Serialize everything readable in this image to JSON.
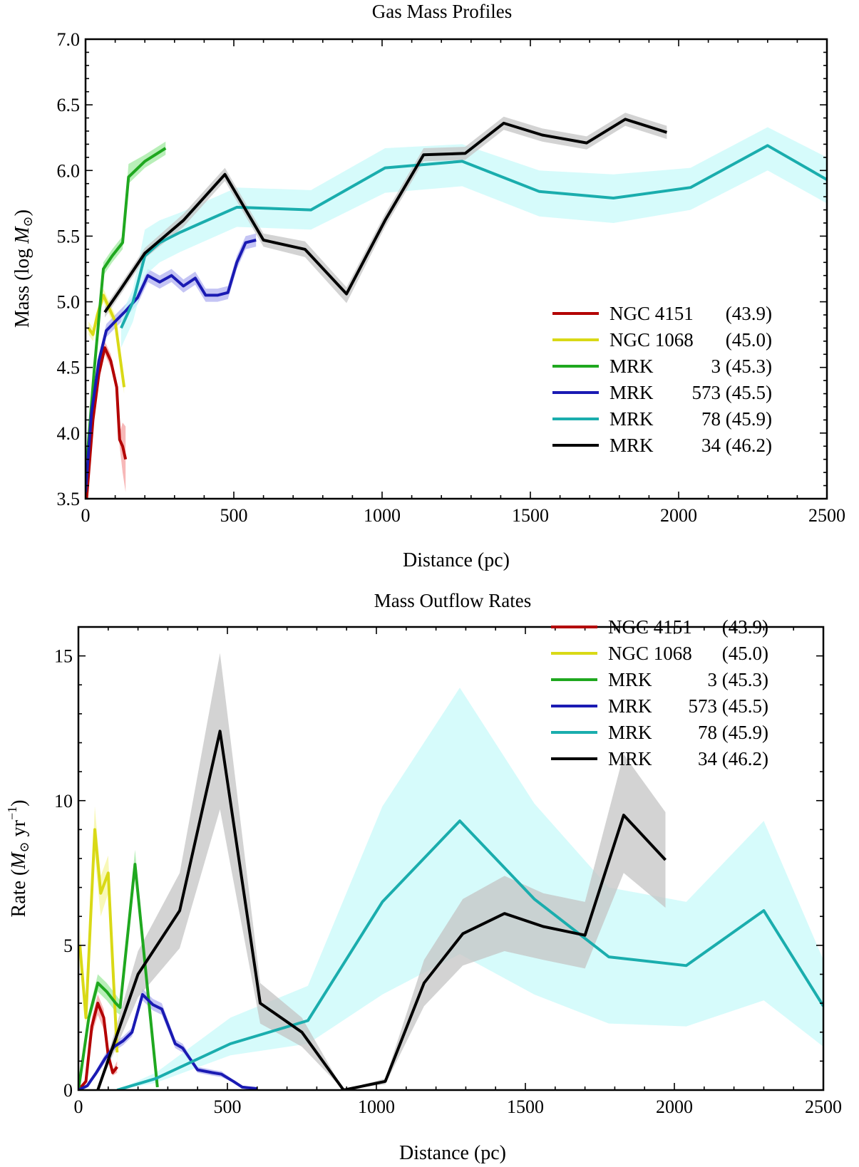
{
  "figure": {
    "charts": [
      {
        "panel": "top",
        "type": "line",
        "title": "Gas Mass Profiles",
        "xlabel": "Distance (pc)",
        "ylabel_main": "Mass  (log ",
        "ylabel_sym": "M",
        "ylabel_sub": "⊙",
        "ylabel_end": ")",
        "xlim": [
          0,
          2500
        ],
        "ylim": [
          3.5,
          7.0
        ],
        "xticks": [
          0,
          500,
          1000,
          1500,
          2000,
          2500
        ],
        "xtick_labels": [
          "0",
          "500",
          "1000",
          "1500",
          "2000",
          "2500"
        ],
        "yticks": [
          3.5,
          4.0,
          4.5,
          5.0,
          5.5,
          6.0,
          6.5,
          7.0
        ],
        "ytick_labels": [
          "3.5",
          "4.0",
          "4.5",
          "5.0",
          "5.5",
          "6.0",
          "6.5",
          "7.0"
        ],
        "legend_position": "lower-right",
        "series": [
          {
            "name": "NGC 4151 (43.9)",
            "label_name": "NGC 4151",
            "label_val": "(43.9)",
            "color": "#b30000",
            "band": "#f4a0a0",
            "x": [
              0,
              25,
              45,
              65,
              85,
              105,
              115,
              125,
              135
            ],
            "y": [
              3.4,
              4.1,
              4.45,
              4.65,
              4.55,
              4.35,
              3.95,
              3.9,
              3.8
            ],
            "lo": [
              3.3,
              4.05,
              4.4,
              4.6,
              4.5,
              4.3,
              3.9,
              3.7,
              3.55
            ],
            "hi": [
              3.5,
              4.15,
              4.5,
              4.7,
              4.6,
              4.4,
              4.0,
              4.08,
              4.05
            ]
          },
          {
            "name": "NGC 1068 (45.0)",
            "label_name": "NGC 1068",
            "label_val": "(45.0)",
            "color": "#d9d916",
            "band": "#f6f6a0",
            "x": [
              10,
              25,
              40,
              60,
              80,
              100,
              115,
              130
            ],
            "y": [
              4.8,
              4.75,
              4.9,
              5.05,
              4.95,
              4.85,
              4.6,
              4.35
            ],
            "lo": [
              4.75,
              4.7,
              4.85,
              5.0,
              4.9,
              4.8,
              4.55,
              4.3
            ],
            "hi": [
              4.85,
              4.8,
              4.95,
              5.1,
              5.0,
              4.9,
              4.65,
              4.4
            ]
          },
          {
            "name": "MRK 3 (45.3)",
            "label_name": "MRK",
            "label_val": "3 (45.3)",
            "color": "#1fa81f",
            "band": "#a0eaa0",
            "x": [
              5,
              30,
              60,
              90,
              125,
              145,
              200,
              270
            ],
            "y": [
              3.8,
              4.5,
              5.25,
              5.35,
              5.45,
              5.95,
              6.07,
              6.17
            ],
            "lo": [
              3.75,
              4.45,
              5.2,
              5.3,
              5.4,
              5.9,
              6.02,
              6.12
            ],
            "hi": [
              3.85,
              4.55,
              5.3,
              5.4,
              5.5,
              6.05,
              6.12,
              6.22
            ]
          },
          {
            "name": "MRK 573 (45.5)",
            "label_name": "MRK",
            "label_val": "573 (45.5)",
            "color": "#1a1ab3",
            "band": "#b0b0f0",
            "x": [
              0,
              20,
              45,
              70,
              100,
              135,
              175,
              210,
              250,
              290,
              330,
              370,
              405,
              445,
              480,
              510,
              540,
              575
            ],
            "y": [
              3.55,
              4.15,
              4.55,
              4.78,
              4.85,
              4.93,
              5.03,
              5.2,
              5.15,
              5.2,
              5.12,
              5.18,
              5.05,
              5.05,
              5.07,
              5.3,
              5.45,
              5.47
            ],
            "lo": [
              3.5,
              4.1,
              4.5,
              4.73,
              4.8,
              4.88,
              4.98,
              5.15,
              5.1,
              5.15,
              5.07,
              5.13,
              5.0,
              5.0,
              5.02,
              5.25,
              5.4,
              5.42
            ],
            "hi": [
              3.6,
              4.2,
              4.6,
              4.83,
              4.9,
              4.98,
              5.08,
              5.25,
              5.2,
              5.25,
              5.17,
              5.23,
              5.1,
              5.1,
              5.12,
              5.35,
              5.5,
              5.52
            ]
          },
          {
            "name": "MRK 78 (45.9)",
            "label_name": "MRK",
            "label_val": "78 (45.9)",
            "color": "#1aadad",
            "band": "#c8fafa",
            "x": [
              120,
              160,
              200,
              250,
              320,
              390,
              510,
              760,
              1010,
              1270,
              1530,
              1780,
              2040,
              2300,
              2500
            ],
            "y": [
              4.8,
              5.0,
              5.35,
              5.45,
              5.53,
              5.6,
              5.72,
              5.7,
              6.02,
              6.07,
              5.84,
              5.79,
              5.87,
              6.19,
              5.93
            ],
            "lo": [
              4.65,
              4.85,
              5.2,
              5.3,
              5.38,
              5.45,
              5.57,
              5.55,
              5.83,
              5.88,
              5.65,
              5.6,
              5.7,
              6.0,
              5.75
            ],
            "hi": [
              4.9,
              5.1,
              5.55,
              5.62,
              5.68,
              5.75,
              5.87,
              5.85,
              6.17,
              6.2,
              6.0,
              5.97,
              6.02,
              6.33,
              6.1
            ]
          },
          {
            "name": "MRK 34 (46.2)",
            "label_name": "MRK",
            "label_val": "34 (46.2)",
            "color": "#000000",
            "band": "#c4c4c4",
            "x": [
              65,
              120,
              200,
              330,
              470,
              600,
              740,
              880,
              1010,
              1140,
              1280,
              1410,
              1540,
              1690,
              1820,
              1960
            ],
            "y": [
              4.92,
              5.1,
              5.37,
              5.62,
              5.97,
              5.47,
              5.4,
              5.06,
              5.62,
              6.12,
              6.13,
              6.36,
              6.27,
              6.21,
              6.39,
              6.29
            ],
            "lo": [
              4.88,
              5.06,
              5.33,
              5.57,
              5.92,
              5.42,
              5.34,
              4.99,
              5.57,
              6.07,
              6.08,
              6.31,
              6.22,
              6.16,
              6.34,
              6.24
            ],
            "hi": [
              4.96,
              5.14,
              5.41,
              5.67,
              6.02,
              5.52,
              5.46,
              5.11,
              5.67,
              6.17,
              6.18,
              6.41,
              6.32,
              6.26,
              6.44,
              6.34
            ]
          }
        ]
      },
      {
        "panel": "bottom",
        "type": "line",
        "title": "Mass Outflow Rates",
        "xlabel": "Distance (pc)",
        "ylabel_main": "Rate (",
        "ylabel_sym": "M",
        "ylabel_sub": "⊙",
        "ylabel_end": " yr",
        "ylabel_sup": "−1",
        "ylabel_close": ")",
        "xlim": [
          0,
          2500
        ],
        "ylim": [
          0,
          16
        ],
        "xticks": [
          0,
          500,
          1000,
          1500,
          2000,
          2500
        ],
        "xtick_labels": [
          "0",
          "500",
          "1000",
          "1500",
          "2000",
          "2500"
        ],
        "yticks": [
          0,
          5,
          10,
          15
        ],
        "ytick_labels": [
          "0",
          "5",
          "10",
          "15"
        ],
        "legend_position": "top-right",
        "series": [
          {
            "name": "NGC 4151 (43.9)",
            "label_name": "NGC 4151",
            "label_val": "(43.9)",
            "color": "#b30000",
            "band": "#f4a0a0",
            "x": [
              0,
              25,
              45,
              65,
              85,
              100,
              115,
              130
            ],
            "y": [
              0,
              0.3,
              2.2,
              3.0,
              2.5,
              1.2,
              0.6,
              0.8
            ],
            "lo": [
              0,
              0.2,
              1.9,
              2.6,
              2.1,
              1.0,
              0.5,
              0.6
            ],
            "hi": [
              0,
              0.4,
              2.5,
              3.3,
              2.8,
              1.4,
              0.7,
              1.0
            ]
          },
          {
            "name": "NGC 1068 (45.0)",
            "label_name": "NGC 1068",
            "label_val": "(45.0)",
            "color": "#d9d916",
            "band": "#f6f6a0",
            "x": [
              5,
              25,
              55,
              75,
              100,
              130
            ],
            "y": [
              5.0,
              2.5,
              9.0,
              6.8,
              7.5,
              1.3
            ],
            "lo": [
              4.3,
              2.2,
              8.1,
              6.0,
              6.8,
              1.0
            ],
            "hi": [
              5.6,
              2.8,
              9.8,
              7.4,
              8.1,
              1.6
            ]
          },
          {
            "name": "MRK 3 (45.3)",
            "label_name": "MRK",
            "label_val": "3 (45.3)",
            "color": "#1fa81f",
            "band": "#a0eaa0",
            "x": [
              0,
              35,
              65,
              95,
              125,
              140,
              190,
              265
            ],
            "y": [
              0,
              2.5,
              3.7,
              3.4,
              3.0,
              2.85,
              7.8,
              0.1
            ],
            "lo": [
              0,
              2.3,
              3.4,
              3.1,
              2.7,
              2.6,
              7.3,
              0.05
            ],
            "hi": [
              0,
              2.7,
              4.0,
              3.7,
              3.3,
              3.1,
              8.3,
              0.15
            ]
          },
          {
            "name": "MRK 573 (45.5)",
            "label_name": "MRK",
            "label_val": "573 (45.5)",
            "color": "#1a1ab3",
            "band": "#b0b0f0",
            "x": [
              0,
              30,
              60,
              90,
              120,
              150,
              180,
              215,
              250,
              280,
              325,
              350,
              400,
              450,
              480,
              520,
              550,
              600
            ],
            "y": [
              0,
              0.15,
              0.6,
              1.1,
              1.5,
              1.7,
              2.0,
              3.3,
              2.95,
              2.8,
              1.6,
              1.45,
              0.7,
              0.6,
              0.55,
              0.3,
              0.1,
              0.05
            ],
            "lo": [
              0,
              0.1,
              0.5,
              0.95,
              1.35,
              1.55,
              1.85,
              3.1,
              2.75,
              2.6,
              1.45,
              1.3,
              0.6,
              0.5,
              0.45,
              0.25,
              0.05,
              0.02
            ],
            "hi": [
              0,
              0.2,
              0.7,
              1.25,
              1.65,
              1.85,
              2.15,
              3.5,
              3.15,
              3.0,
              1.75,
              1.6,
              0.8,
              0.7,
              0.65,
              0.35,
              0.15,
              0.08
            ]
          },
          {
            "name": "MRK 78 (45.9)",
            "label_name": "MRK",
            "label_val": "78 (45.9)",
            "color": "#1aadad",
            "band": "#c8fafa",
            "x": [
              130,
              260,
              510,
              770,
              1020,
              1280,
              1530,
              1780,
              2040,
              2300,
              2500
            ],
            "y": [
              0,
              0.4,
              1.6,
              2.4,
              6.5,
              9.3,
              6.6,
              4.6,
              4.3,
              6.2,
              2.9
            ],
            "lo": [
              0,
              0.25,
              1.2,
              1.6,
              3.3,
              4.7,
              3.3,
              2.3,
              2.2,
              3.1,
              1.5
            ],
            "hi": [
              0,
              0.6,
              2.5,
              3.6,
              9.8,
              13.9,
              9.9,
              7.0,
              6.5,
              9.3,
              4.5
            ]
          },
          {
            "name": "MRK 34 (46.2)",
            "label_name": "MRK",
            "label_val": "34 (46.2)",
            "color": "#000000",
            "band": "#c4c4c4",
            "x": [
              65,
              200,
              340,
              475,
              610,
              750,
              890,
              1030,
              1160,
              1290,
              1430,
              1560,
              1700,
              1830,
              1970
            ],
            "y": [
              0,
              4.0,
              6.2,
              12.4,
              3.0,
              2.0,
              0,
              0.3,
              3.7,
              5.4,
              6.1,
              5.65,
              5.35,
              9.5,
              7.95
            ],
            "lo": [
              0,
              3.2,
              4.9,
              9.7,
              2.3,
              1.5,
              0,
              0.2,
              2.9,
              4.3,
              4.8,
              4.5,
              4.2,
              7.5,
              6.3
            ],
            "hi": [
              0,
              4.8,
              7.5,
              15.1,
              3.7,
              2.5,
              0,
              0.4,
              4.5,
              6.6,
              7.4,
              6.8,
              6.5,
              11.6,
              9.6
            ]
          }
        ]
      }
    ]
  }
}
